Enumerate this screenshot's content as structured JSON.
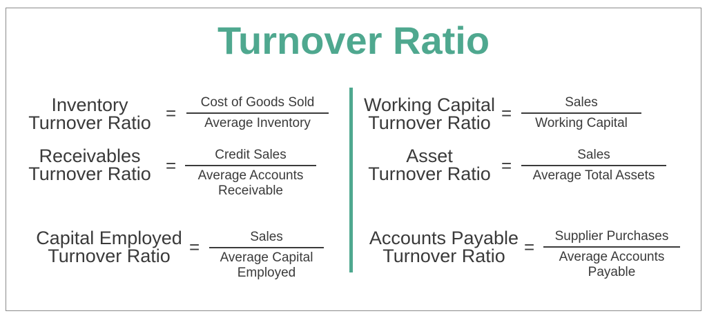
{
  "title": "Turnover Ratio",
  "formulas": [
    {
      "id": "inventory",
      "label_line1": "Inventory",
      "label_line2": "Turnover Ratio",
      "equals": "=",
      "numerator": "Cost of Goods Sold",
      "denominator_line1": "Average Inventory",
      "denominator_line2": ""
    },
    {
      "id": "receivables",
      "label_line1": "Receivables",
      "label_line2": "Turnover Ratio",
      "equals": "=",
      "numerator": "Credit Sales",
      "denominator_line1": "Average Accounts",
      "denominator_line2": "Receivable"
    },
    {
      "id": "capital-employed",
      "label_line1": "Capital Employed",
      "label_line2": "Turnover Ratio",
      "equals": "=",
      "numerator": "Sales",
      "denominator_line1": "Average Capital",
      "denominator_line2": "Employed"
    },
    {
      "id": "working-capital",
      "label_line1": "Working Capital",
      "label_line2": "Turnover Ratio",
      "equals": "=",
      "numerator": "Sales",
      "denominator_line1": "Working Capital",
      "denominator_line2": ""
    },
    {
      "id": "asset",
      "label_line1": "Asset",
      "label_line2": "Turnover Ratio",
      "equals": "=",
      "numerator": "Sales",
      "denominator_line1": "Average Total Assets",
      "denominator_line2": ""
    },
    {
      "id": "accounts-payable",
      "label_line1": "Accounts Payable",
      "label_line2": "Turnover Ratio",
      "equals": "=",
      "numerator": "Supplier Purchases",
      "denominator_line1": "Average Accounts",
      "denominator_line2": "Payable"
    }
  ],
  "colors": {
    "accent": "#4fa88f",
    "text": "#3a3a3a",
    "border": "#8a8a8a"
  }
}
